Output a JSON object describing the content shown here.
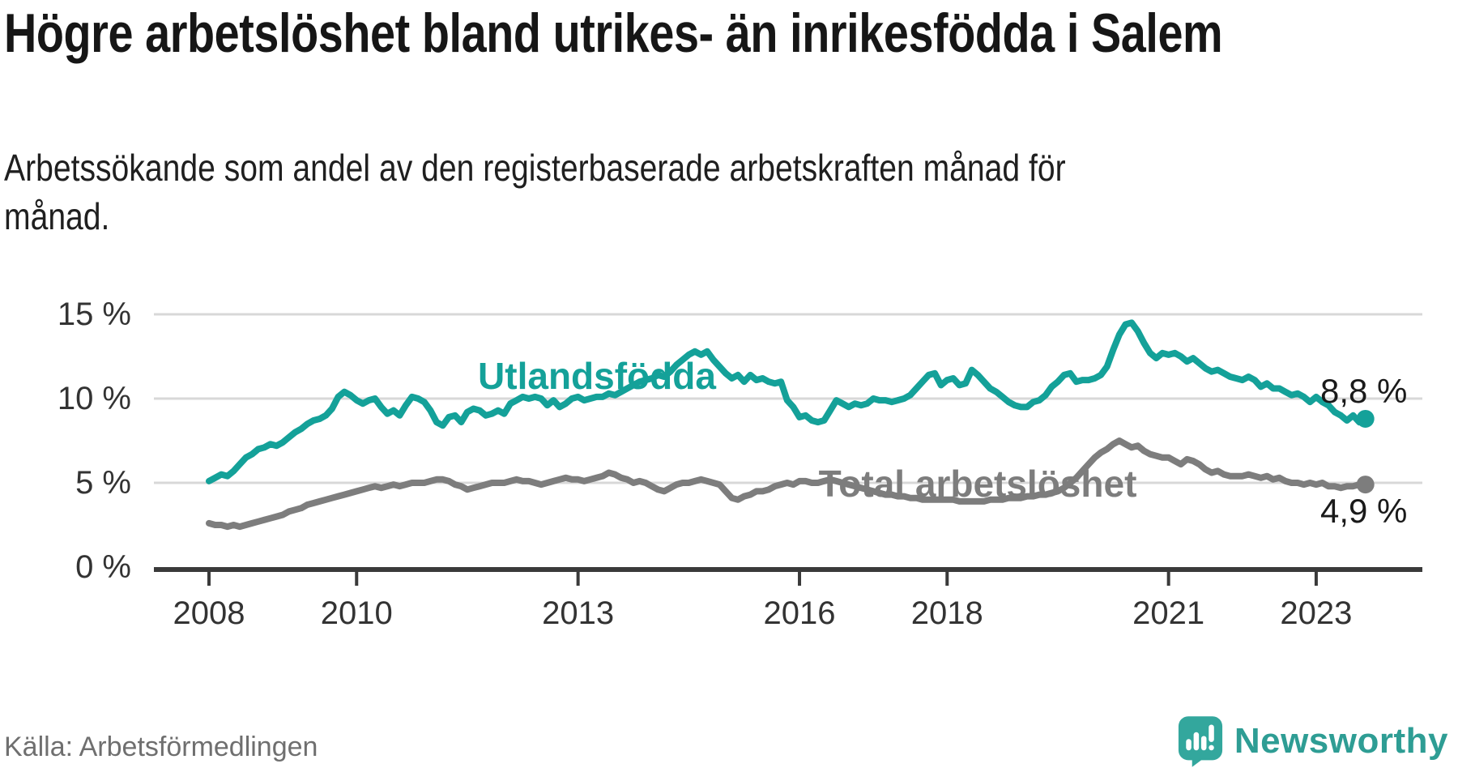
{
  "title": "Högre arbetslöshet bland utrikes- än inrikesfödda i Salem",
  "subtitle": "Arbetssökande som andel av den registerbaserade arbetskraften månad för månad.",
  "source": "Källa: Arbetsförmedlingen",
  "brand": {
    "name": "Newsworthy",
    "icon": "newsworthy-speech-bubble-bar-chart-icon",
    "icon_color": "#33a79d",
    "wordmark_color": "#2e9d94"
  },
  "colors": {
    "accent_teal": "#14a199",
    "line_gray": "#7d7d7d",
    "gridline": "#d8d8d8",
    "axis": "#3a3a3a",
    "axis_text": "#333333",
    "end_label_text": "#1a1a1a",
    "title_text": "#161616",
    "subtitle_text": "#1f1f1f",
    "source_text": "#6f6f6f",
    "background": "#ffffff"
  },
  "chart_data": {
    "type": "line",
    "unit": "%",
    "frequency": "monthly",
    "start_month": "2008-01",
    "end_month": "2023-09",
    "grid": true,
    "legend_position": "inline-labels",
    "y_axis": {
      "range": [
        0,
        15.5
      ],
      "ticks": [
        {
          "label": "0 %",
          "value": 0
        },
        {
          "label": "5 %",
          "value": 5
        },
        {
          "label": "10 %",
          "value": 10
        },
        {
          "label": "15 %",
          "value": 15
        }
      ]
    },
    "x_axis": {
      "ticks": [
        {
          "label": "2008",
          "month_index": 0
        },
        {
          "label": "2010",
          "month_index": 24
        },
        {
          "label": "2013",
          "month_index": 60
        },
        {
          "label": "2016",
          "month_index": 96
        },
        {
          "label": "2018",
          "month_index": 120
        },
        {
          "label": "2021",
          "month_index": 156
        },
        {
          "label": "2023",
          "month_index": 180
        }
      ]
    },
    "years": [
      2008,
      2009,
      2010,
      2011,
      2012,
      2013,
      2014,
      2015,
      2016,
      2017,
      2018,
      2019,
      2020,
      2021,
      2022,
      2023
    ],
    "series": [
      {
        "name": "Utlandsfödda",
        "color": "#14a199",
        "end_label": "8,8 %",
        "end_value": 8.8,
        "monthly_values": [
          [
            5.1,
            5.3,
            5.5,
            5.4,
            5.7,
            6.1,
            6.5,
            6.7,
            7.0,
            7.1,
            7.3,
            7.2
          ],
          [
            7.4,
            7.7,
            8.0,
            8.2,
            8.5,
            8.7,
            8.8,
            9.0,
            9.4,
            10.1,
            10.4,
            10.2
          ],
          [
            9.9,
            9.7,
            9.9,
            10.0,
            9.5,
            9.1,
            9.3,
            9.0,
            9.6,
            10.1,
            10.0,
            9.8
          ],
          [
            9.3,
            8.6,
            8.4,
            8.9,
            9.0,
            8.6,
            9.2,
            9.4,
            9.3,
            9.0,
            9.1,
            9.3
          ],
          [
            9.1,
            9.7,
            9.9,
            10.1,
            10.0,
            10.1,
            10.0,
            9.6,
            9.9,
            9.5,
            9.7,
            10.0
          ],
          [
            10.1,
            9.9,
            10.0,
            10.1,
            10.1,
            10.3,
            10.2,
            10.4,
            10.6,
            10.8,
            11.0,
            11.1
          ],
          [
            11.2,
            11.4,
            11.3,
            11.6,
            12.0,
            12.3,
            12.6,
            12.8,
            12.6,
            12.8,
            12.3,
            11.9
          ],
          [
            11.5,
            11.2,
            11.4,
            11.0,
            11.4,
            11.1,
            11.2,
            11.0,
            10.9,
            11.0,
            9.9,
            9.5
          ],
          [
            8.9,
            9.0,
            8.7,
            8.6,
            8.7,
            9.3,
            9.9,
            9.7,
            9.5,
            9.7,
            9.6,
            9.7
          ],
          [
            10.0,
            9.9,
            9.9,
            9.8,
            9.9,
            10.0,
            10.2,
            10.6,
            11.0,
            11.4,
            11.5,
            10.8
          ],
          [
            11.1,
            11.2,
            10.8,
            10.9,
            11.7,
            11.4,
            11.0,
            10.6,
            10.4,
            10.1,
            9.8,
            9.6
          ],
          [
            9.5,
            9.5,
            9.8,
            9.9,
            10.2,
            10.7,
            11.0,
            11.4,
            11.5,
            11.0,
            11.1,
            11.1
          ],
          [
            11.2,
            11.4,
            11.9,
            12.9,
            13.8,
            14.4,
            14.5,
            14.0,
            13.3,
            12.7,
            12.4,
            12.7
          ],
          [
            12.6,
            12.7,
            12.5,
            12.2,
            12.4,
            12.1,
            11.8,
            11.6,
            11.7,
            11.5,
            11.3,
            11.2
          ],
          [
            11.1,
            11.3,
            11.1,
            10.7,
            10.9,
            10.6,
            10.6,
            10.4,
            10.2,
            10.3,
            10.1,
            9.8
          ],
          [
            10.1,
            9.8,
            9.6,
            9.2,
            9.0,
            8.7,
            9.0,
            8.6,
            8.8
          ]
        ]
      },
      {
        "name": "Total arbetslöshet",
        "color": "#7d7d7d",
        "end_label": "4,9 %",
        "end_value": 4.9,
        "monthly_values": [
          [
            2.6,
            2.5,
            2.5,
            2.4,
            2.5,
            2.4,
            2.5,
            2.6,
            2.7,
            2.8,
            2.9,
            3.0
          ],
          [
            3.1,
            3.3,
            3.4,
            3.5,
            3.7,
            3.8,
            3.9,
            4.0,
            4.1,
            4.2,
            4.3,
            4.4
          ],
          [
            4.5,
            4.6,
            4.7,
            4.8,
            4.7,
            4.8,
            4.9,
            4.8,
            4.9,
            5.0,
            5.0,
            5.0
          ],
          [
            5.1,
            5.2,
            5.2,
            5.1,
            4.9,
            4.8,
            4.6,
            4.7,
            4.8,
            4.9,
            5.0,
            5.0
          ],
          [
            5.0,
            5.1,
            5.2,
            5.1,
            5.1,
            5.0,
            4.9,
            5.0,
            5.1,
            5.2,
            5.3,
            5.2
          ],
          [
            5.2,
            5.1,
            5.2,
            5.3,
            5.4,
            5.6,
            5.5,
            5.3,
            5.2,
            5.0,
            5.1,
            5.0
          ],
          [
            4.8,
            4.6,
            4.5,
            4.7,
            4.9,
            5.0,
            5.0,
            5.1,
            5.2,
            5.1,
            5.0,
            4.9
          ],
          [
            4.5,
            4.1,
            4.0,
            4.2,
            4.3,
            4.5,
            4.5,
            4.6,
            4.8,
            4.9,
            5.0,
            4.9
          ],
          [
            5.1,
            5.1,
            5.0,
            5.0,
            5.1,
            5.2,
            5.1,
            5.0,
            4.9,
            4.8,
            4.7,
            4.6
          ],
          [
            4.5,
            4.4,
            4.3,
            4.3,
            4.2,
            4.2,
            4.1,
            4.1,
            4.0,
            4.0,
            4.0,
            4.0
          ],
          [
            4.0,
            4.0,
            3.9,
            3.9,
            3.9,
            3.9,
            3.9,
            4.0,
            4.0,
            4.0,
            4.1,
            4.1
          ],
          [
            4.1,
            4.2,
            4.2,
            4.3,
            4.3,
            4.4,
            4.5,
            4.7,
            5.0,
            5.3,
            5.7,
            6.1
          ],
          [
            6.5,
            6.8,
            7.0,
            7.3,
            7.5,
            7.3,
            7.1,
            7.2,
            6.9,
            6.7,
            6.6,
            6.5
          ],
          [
            6.5,
            6.3,
            6.1,
            6.4,
            6.3,
            6.1,
            5.8,
            5.6,
            5.7,
            5.5,
            5.4,
            5.4
          ],
          [
            5.4,
            5.5,
            5.4,
            5.3,
            5.4,
            5.2,
            5.3,
            5.1,
            5.0,
            5.0,
            4.9,
            5.0
          ],
          [
            4.9,
            5.0,
            4.8,
            4.8,
            4.7,
            4.8,
            4.8,
            4.9,
            4.9
          ]
        ]
      }
    ]
  }
}
